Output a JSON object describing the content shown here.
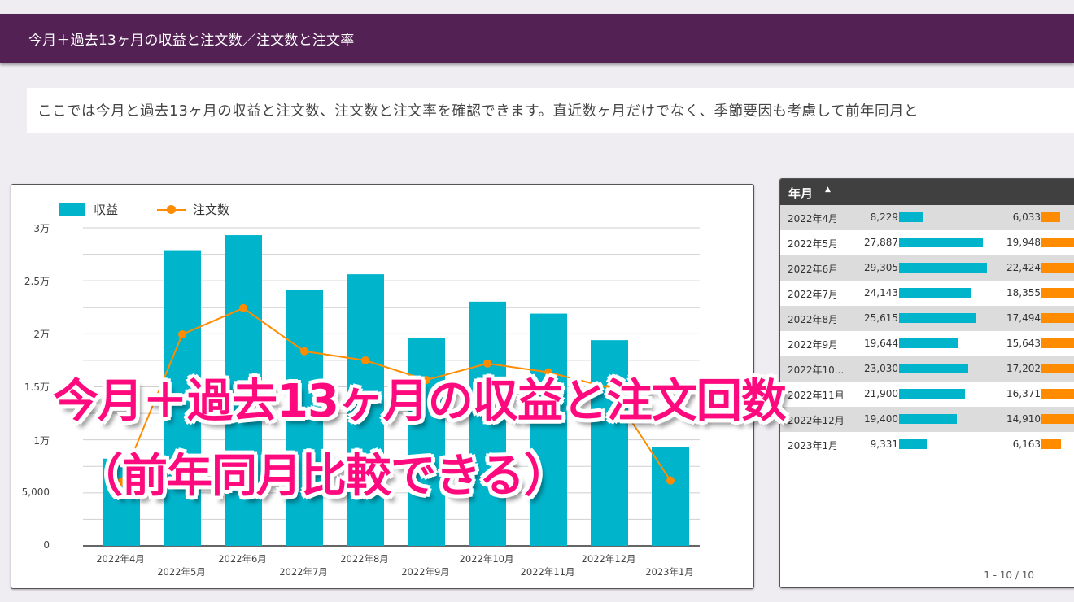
{
  "header": {
    "title": "今月＋過去13ヶ月の収益と注文数／注文数と注文率"
  },
  "description": {
    "text": "ここでは今月と過去13ヶ月の収益と注文数、注文数と注文率を確認できます。直近数ヶ月だけでなく、季節要因も考慮して前年同月と"
  },
  "chart": {
    "legend": {
      "bar_label": "収益",
      "line_label": "注文数"
    },
    "yticks": [
      "3万",
      "2.5万",
      "2万",
      "1.5万",
      "1万",
      "5,000",
      "0"
    ],
    "xticks": [
      "2022年4月",
      "2022年5月",
      "2022年6月",
      "2022年7月",
      "2022年8月",
      "2022年9月",
      "2022年10月",
      "2022年11月",
      "2022年12月",
      "2023年1月"
    ]
  },
  "table": {
    "header": {
      "label": "年月",
      "sort_icon": "▲"
    },
    "rows": [
      {
        "month": "2022年4月",
        "revenue": "8,229",
        "orders": "6,033"
      },
      {
        "month": "2022年5月",
        "revenue": "27,887",
        "orders": "19,948"
      },
      {
        "month": "2022年6月",
        "revenue": "29,305",
        "orders": "22,424"
      },
      {
        "month": "2022年7月",
        "revenue": "24,143",
        "orders": "18,355"
      },
      {
        "month": "2022年8月",
        "revenue": "25,615",
        "orders": "17,494"
      },
      {
        "month": "2022年9月",
        "revenue": "19,644",
        "orders": "15,643"
      },
      {
        "month": "2022年10...",
        "revenue": "23,030",
        "orders": "17,202"
      },
      {
        "month": "2022年11月",
        "revenue": "21,900",
        "orders": "16,371"
      },
      {
        "month": "2022年12月",
        "revenue": "19,400",
        "orders": "14,910"
      },
      {
        "month": "2023年1月",
        "revenue": "9,331",
        "orders": "6,163"
      }
    ],
    "pager": "1 - 10 / 10"
  },
  "overlay": {
    "line1": "今月＋過去13ヶ月の収益と注文回数",
    "line2": "（前年同月比較できる）"
  },
  "colors": {
    "header_bg": "#542154",
    "bar": "#00b4cb",
    "line": "#ff8c00",
    "overlay_text": "#ff0a7e"
  },
  "chart_data": {
    "type": "bar",
    "title": "",
    "categories": [
      "2022年4月",
      "2022年5月",
      "2022年6月",
      "2022年7月",
      "2022年8月",
      "2022年9月",
      "2022年10月",
      "2022年11月",
      "2022年12月",
      "2023年1月"
    ],
    "series": [
      {
        "name": "収益",
        "type": "bar",
        "values": [
          8229,
          27887,
          29305,
          24143,
          25615,
          19644,
          23030,
          21900,
          19400,
          9331
        ]
      },
      {
        "name": "注文数",
        "type": "line",
        "values": [
          6033,
          19948,
          22424,
          18355,
          17494,
          15643,
          17202,
          16371,
          14910,
          6163
        ]
      }
    ],
    "xlabel": "",
    "ylabel": "",
    "ylim": [
      0,
      30000
    ],
    "yticks": [
      "0",
      "5,000",
      "1万",
      "1.5万",
      "2万",
      "2.5万",
      "3万"
    ],
    "grid": true,
    "legend_position": "top-left"
  }
}
